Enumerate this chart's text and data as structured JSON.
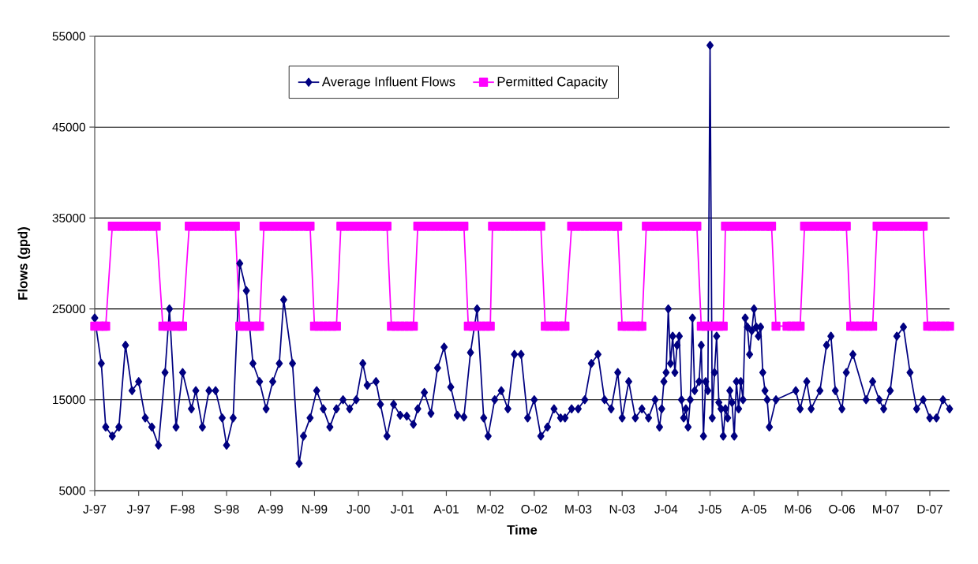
{
  "chart_data": {
    "type": "line",
    "xlabel": "Time",
    "ylabel": "Flows (gpd)",
    "ylim": [
      5000,
      55000
    ],
    "yticks": [
      5000,
      15000,
      25000,
      35000,
      45000,
      55000
    ],
    "categories": [
      "J-97",
      null,
      null,
      null,
      null,
      null,
      null,
      null,
      null,
      null,
      null,
      null,
      null,
      null,
      null,
      null,
      null,
      null,
      null,
      null,
      "J-97",
      null,
      null,
      null,
      null,
      null,
      null,
      null,
      null,
      null,
      null,
      null,
      null,
      null,
      null,
      null,
      null,
      null,
      null,
      null,
      "F-98",
      null,
      null,
      null,
      null,
      null,
      null,
      null,
      null,
      null,
      null,
      null,
      null,
      null,
      null,
      null,
      null,
      null,
      null,
      null,
      "S-98",
      null,
      null,
      null,
      null,
      null,
      null,
      null,
      null,
      null,
      null,
      null,
      null,
      null,
      null,
      null,
      null,
      null,
      null,
      null,
      "A-99",
      null,
      null,
      null,
      null,
      null,
      null,
      null,
      null,
      null,
      null,
      null,
      null,
      null,
      null,
      null,
      null,
      null,
      null,
      null,
      "N-99",
      null,
      null,
      null,
      null,
      null,
      null,
      null,
      null,
      null,
      null,
      null,
      null,
      null,
      null,
      null,
      null,
      null,
      null,
      null,
      "J-00",
      null,
      null,
      null,
      null,
      null,
      null,
      null,
      null,
      null,
      null,
      null,
      null,
      null,
      null,
      null,
      null,
      null,
      null,
      null,
      "J-01",
      null,
      null,
      null,
      null,
      null,
      null,
      null,
      null,
      null,
      null,
      null,
      null,
      null,
      null,
      null,
      null,
      null,
      null,
      null,
      "A-01",
      null,
      null,
      null,
      null,
      null,
      null,
      null,
      null,
      null,
      null,
      null,
      null,
      null,
      null,
      null,
      null,
      null,
      null,
      null,
      "M-02",
      null,
      null,
      null,
      null,
      null,
      null,
      null,
      null,
      null,
      null,
      null,
      null,
      null,
      null,
      null,
      null,
      null,
      null,
      null,
      "O-02",
      null,
      null,
      null,
      null,
      null,
      null,
      null,
      null,
      null,
      null,
      null,
      null,
      null,
      null,
      null,
      null,
      null,
      null,
      null,
      "M-03",
      null,
      null,
      null,
      null,
      null,
      null,
      null,
      null,
      null,
      null,
      null,
      null,
      null,
      null,
      null,
      null,
      null,
      null,
      null,
      "N-03",
      null,
      null,
      null,
      null,
      null,
      null,
      null,
      null,
      null,
      null,
      null,
      null,
      null,
      null,
      null,
      null,
      null,
      null,
      null,
      "J-04",
      null,
      null,
      null,
      null,
      null,
      null,
      null,
      null,
      null,
      null,
      null,
      null,
      null,
      null,
      null,
      null,
      null,
      null,
      null,
      "J-05",
      null,
      null,
      null,
      null,
      null,
      null,
      null,
      null,
      null,
      null,
      null,
      null,
      null,
      null,
      null,
      null,
      null,
      null,
      null,
      "A-05",
      null,
      null,
      null,
      null,
      null,
      null,
      null,
      null,
      null,
      null,
      null,
      null,
      null,
      null,
      null,
      null,
      null,
      null,
      null,
      "M-06",
      null,
      null,
      null,
      null,
      null,
      null,
      null,
      null,
      null,
      null,
      null,
      null,
      null,
      null,
      null,
      null,
      null,
      null,
      null,
      "O-06",
      null,
      null,
      null,
      null,
      null,
      null,
      null,
      null,
      null,
      null,
      null,
      null,
      null,
      null,
      null,
      null,
      null,
      null,
      null,
      "M-07",
      null,
      null,
      null,
      null,
      null,
      null,
      null,
      null,
      null,
      null,
      null,
      null,
      null,
      null,
      null,
      null,
      null,
      null,
      null,
      "D-07",
      null,
      null,
      null,
      null,
      null,
      null,
      null,
      null,
      null
    ],
    "grid": "y",
    "legend": "top",
    "line_style": "solid",
    "series": [
      {
        "name": "Average Influent Flows",
        "color": "#000080",
        "marker": "diamond",
        "values": [
          24000,
          null,
          null,
          19000,
          null,
          12000,
          null,
          null,
          11000,
          null,
          null,
          12000,
          null,
          null,
          21000,
          null,
          null,
          16000,
          null,
          null,
          17000,
          null,
          null,
          13000,
          null,
          null,
          12000,
          null,
          null,
          10000,
          null,
          null,
          18000,
          null,
          25000,
          null,
          null,
          12000,
          null,
          null,
          18000,
          null,
          null,
          null,
          14000,
          null,
          16000,
          null,
          null,
          12000,
          null,
          null,
          16000,
          null,
          null,
          16000,
          null,
          null,
          13000,
          null,
          10000,
          null,
          null,
          13000,
          null,
          null,
          30000,
          null,
          null,
          27000,
          null,
          null,
          19000,
          null,
          null,
          17000,
          null,
          null,
          14000,
          null,
          null,
          17000,
          null,
          null,
          19000,
          null,
          26000,
          null,
          null,
          null,
          19000,
          null,
          null,
          8000,
          null,
          11000,
          null,
          null,
          13000,
          null,
          null,
          16000,
          null,
          null,
          14000,
          null,
          null,
          12000,
          null,
          null,
          14000,
          null,
          null,
          15000,
          null,
          null,
          14000,
          null,
          null,
          15000,
          null,
          null,
          19000,
          null,
          16600,
          null,
          null,
          null,
          17000,
          null,
          14500,
          null,
          null,
          11000,
          null,
          null,
          14500,
          null,
          null,
          13300,
          null,
          null,
          13200,
          null,
          null,
          12300,
          null,
          14000,
          null,
          null,
          15800,
          null,
          null,
          13500,
          null,
          null,
          18500,
          null,
          null,
          20800,
          null,
          null,
          16400,
          null,
          null,
          13300,
          null,
          null,
          13100,
          null,
          null,
          20200,
          null,
          null,
          25000,
          null,
          null,
          13000,
          null,
          11000,
          null,
          null,
          15000,
          null,
          null,
          16000,
          null,
          null,
          14000,
          null,
          null,
          20000,
          null,
          null,
          20000,
          null,
          null,
          13000,
          null,
          null,
          15000,
          null,
          null,
          11000,
          null,
          null,
          12000,
          null,
          null,
          14000,
          null,
          null,
          13000,
          null,
          13000,
          null,
          null,
          14000,
          null,
          null,
          14000,
          null,
          null,
          15000,
          null,
          null,
          19000,
          null,
          null,
          20000,
          null,
          null,
          15000,
          null,
          null,
          14000,
          null,
          null,
          18000,
          null,
          13000,
          null,
          null,
          17000,
          null,
          null,
          13000,
          null,
          null,
          14000,
          null,
          null,
          13000,
          null,
          null,
          15000,
          null,
          12000,
          14000,
          17000,
          18000,
          25000,
          19000,
          22000,
          18000,
          21000,
          22000,
          15000,
          13000,
          14000,
          12000,
          15000,
          24000,
          16000,
          null,
          17000,
          21000,
          11000,
          17000,
          16000,
          54000,
          13000,
          18000,
          22000,
          14700,
          14000,
          11000,
          14000,
          13000,
          16000,
          14700,
          11000,
          17000,
          14000,
          17000,
          15000,
          24000,
          23000,
          20000,
          22600,
          25000,
          23000,
          22000,
          23000,
          18000,
          16000,
          15000,
          12000,
          null,
          null,
          15000,
          null,
          null,
          null,
          null,
          null,
          null,
          null,
          null,
          16000,
          null,
          14000,
          null,
          null,
          17000,
          null,
          14000,
          null,
          null,
          null,
          16000,
          null,
          null,
          21000,
          null,
          22000,
          null,
          16000,
          null,
          null,
          14000,
          null,
          18000,
          null,
          null,
          20000,
          null,
          null,
          null,
          null,
          null,
          15000,
          null,
          null,
          17000,
          null,
          null,
          15000,
          null,
          14000,
          null,
          null,
          16000,
          null,
          null,
          22000,
          null,
          null,
          23000,
          null,
          null,
          18000,
          null,
          null,
          14000,
          null,
          null,
          15000,
          null,
          null,
          13000,
          null,
          null,
          13000,
          null,
          null,
          15000,
          null,
          null,
          14000
        ]
      },
      {
        "name": "Permitted Capacity",
        "color": "#ff00ff",
        "marker": "square",
        "values": [
          23100,
          null,
          23100,
          null,
          23100,
          23100,
          null,
          null,
          34100,
          null,
          34100,
          null,
          34100,
          null,
          34100,
          null,
          34100,
          null,
          34100,
          null,
          34100,
          null,
          34100,
          null,
          34100,
          null,
          34100,
          null,
          34100,
          null,
          null,
          23100,
          null,
          23100,
          null,
          23100,
          null,
          23100,
          null,
          23100,
          23100,
          null,
          null,
          34100,
          null,
          34100,
          null,
          34100,
          null,
          34100,
          null,
          34100,
          null,
          34100,
          null,
          34100,
          null,
          34100,
          null,
          34100,
          null,
          34100,
          null,
          34100,
          34100,
          null,
          23100,
          null,
          23100,
          null,
          23100,
          null,
          23100,
          null,
          23100,
          23100,
          null,
          34100,
          null,
          34100,
          null,
          34100,
          null,
          34100,
          null,
          34100,
          null,
          34100,
          null,
          34100,
          null,
          34100,
          null,
          34100,
          null,
          34100,
          null,
          34100,
          34100,
          null,
          23100,
          null,
          23100,
          null,
          23100,
          null,
          23100,
          null,
          23100,
          null,
          23100,
          null,
          34100,
          null,
          34100,
          null,
          34100,
          null,
          34100,
          null,
          34100,
          null,
          34100,
          null,
          34100,
          null,
          34100,
          null,
          34100,
          null,
          34100,
          null,
          34100,
          34100,
          null,
          23100,
          null,
          23100,
          null,
          23100,
          null,
          23100,
          null,
          23100,
          null,
          23100,
          null,
          34100,
          null,
          34100,
          null,
          34100,
          null,
          34100,
          null,
          34100,
          null,
          34100,
          null,
          34100,
          null,
          34100,
          null,
          34100,
          null,
          34100,
          null,
          34100,
          34100,
          null,
          23100,
          null,
          23100,
          null,
          23100,
          null,
          23100,
          null,
          23100,
          null,
          23100,
          34100,
          null,
          34100,
          null,
          34100,
          null,
          34100,
          null,
          34100,
          null,
          34100,
          null,
          34100,
          null,
          34100,
          null,
          34100,
          null,
          34100,
          null,
          34100,
          null,
          34100,
          null,
          23100,
          null,
          23100,
          null,
          23100,
          null,
          23100,
          null,
          23100,
          23100,
          null,
          null,
          34100,
          null,
          34100,
          null,
          34100,
          null,
          34100,
          null,
          34100,
          null,
          34100,
          null,
          34100,
          null,
          34100,
          null,
          34100,
          null,
          34100,
          null,
          34100,
          34100,
          null,
          23100,
          null,
          23100,
          null,
          23100,
          null,
          23100,
          null,
          23100,
          23100,
          null,
          34100,
          null,
          34100,
          null,
          34100,
          null,
          34100,
          null,
          34100,
          null,
          34100,
          null,
          34100,
          null,
          34100,
          null,
          34100,
          null,
          34100,
          null,
          34100,
          null,
          34100,
          34100,
          null,
          23100,
          null,
          23100,
          null,
          23100,
          null,
          23100,
          null,
          23100,
          null,
          23100,
          34100,
          null,
          34100,
          null,
          34100,
          null,
          34100,
          null,
          34100,
          null,
          34100,
          null,
          34100,
          null,
          34100,
          null,
          34100,
          null,
          34100,
          null,
          34100,
          34100,
          null,
          23100,
          null,
          null,
          null,
          null,
          23100,
          null,
          23100,
          null,
          23100,
          null,
          23100,
          null,
          34100,
          null,
          34100,
          null,
          34100,
          null,
          34100,
          null,
          34100,
          null,
          34100,
          null,
          34100,
          null,
          34100,
          null,
          34100,
          null,
          34100,
          34100,
          null,
          23100,
          null,
          23100,
          null,
          23100,
          null,
          23100,
          null,
          23100,
          null,
          23100,
          null,
          34100,
          null,
          34100,
          null,
          34100,
          null,
          34100,
          null,
          34100,
          null,
          34100,
          null,
          34100,
          null,
          34100,
          null,
          34100,
          null,
          34100,
          null,
          34100,
          34100,
          null,
          23100,
          null,
          23100,
          null,
          23100,
          null,
          23100,
          null,
          23100,
          null,
          23100
        ]
      }
    ]
  }
}
